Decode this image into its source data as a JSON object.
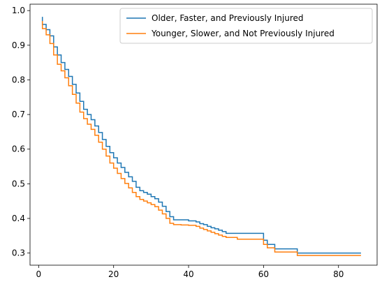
{
  "chart_data": {
    "type": "line",
    "step": "post",
    "title": "",
    "xlabel": "",
    "ylabel": "",
    "xlim": [
      -2.3,
      90.3
    ],
    "ylim": [
      0.265,
      1.0185
    ],
    "xticks": [
      0,
      20,
      40,
      60,
      80
    ],
    "yticks": [
      0.3,
      0.4,
      0.5,
      0.6,
      0.7,
      0.8,
      0.9,
      1.0
    ],
    "xtick_labels": [
      "0",
      "20",
      "40",
      "60",
      "80"
    ],
    "ytick_labels": [
      "0.3",
      "0.4",
      "0.5",
      "0.6",
      "0.7",
      "0.8",
      "0.9",
      "1.0"
    ],
    "grid": false,
    "legend_position": "top-right",
    "series": [
      {
        "name": "Older, Faster, and Previously Injured",
        "color": "#1f77b4",
        "x": [
          1,
          1,
          2,
          3,
          4,
          5,
          6,
          7,
          8,
          9,
          10,
          11,
          12,
          13,
          14,
          15,
          16,
          17,
          18,
          19,
          20,
          21,
          22,
          23,
          24,
          25,
          26,
          27,
          28,
          29,
          30,
          31,
          32,
          33,
          34,
          35,
          36,
          38,
          40,
          41,
          42,
          43,
          44,
          45,
          46,
          47,
          48,
          49,
          50,
          53,
          60,
          61,
          63,
          69,
          86
        ],
        "y": [
          0.982,
          0.96,
          0.945,
          0.927,
          0.895,
          0.872,
          0.85,
          0.83,
          0.81,
          0.787,
          0.762,
          0.738,
          0.715,
          0.7,
          0.685,
          0.667,
          0.648,
          0.628,
          0.608,
          0.59,
          0.575,
          0.56,
          0.547,
          0.533,
          0.52,
          0.507,
          0.49,
          0.48,
          0.475,
          0.47,
          0.463,
          0.457,
          0.447,
          0.435,
          0.42,
          0.405,
          0.396,
          0.396,
          0.393,
          0.393,
          0.39,
          0.385,
          0.382,
          0.377,
          0.373,
          0.37,
          0.366,
          0.362,
          0.357,
          0.357,
          0.337,
          0.325,
          0.312,
          0.3,
          0.3
        ]
      },
      {
        "name": "Younger, Slower, and Not Previously Injured",
        "color": "#ff7f0e",
        "x": [
          1,
          1,
          2,
          3,
          4,
          5,
          6,
          7,
          8,
          9,
          10,
          11,
          12,
          13,
          14,
          15,
          16,
          17,
          18,
          19,
          20,
          21,
          22,
          23,
          24,
          25,
          26,
          27,
          28,
          29,
          30,
          31,
          32,
          33,
          34,
          35,
          36,
          38,
          40,
          41,
          42,
          43,
          44,
          45,
          46,
          47,
          48,
          49,
          50,
          53,
          60,
          61,
          63,
          69,
          86
        ],
        "y": [
          0.97,
          0.948,
          0.93,
          0.905,
          0.872,
          0.845,
          0.826,
          0.806,
          0.783,
          0.758,
          0.733,
          0.707,
          0.688,
          0.672,
          0.657,
          0.64,
          0.62,
          0.6,
          0.58,
          0.56,
          0.545,
          0.53,
          0.515,
          0.501,
          0.488,
          0.475,
          0.463,
          0.455,
          0.45,
          0.445,
          0.44,
          0.434,
          0.424,
          0.413,
          0.4,
          0.386,
          0.382,
          0.381,
          0.38,
          0.38,
          0.377,
          0.372,
          0.368,
          0.364,
          0.36,
          0.356,
          0.352,
          0.348,
          0.345,
          0.34,
          0.325,
          0.315,
          0.303,
          0.293,
          0.293
        ]
      }
    ]
  }
}
